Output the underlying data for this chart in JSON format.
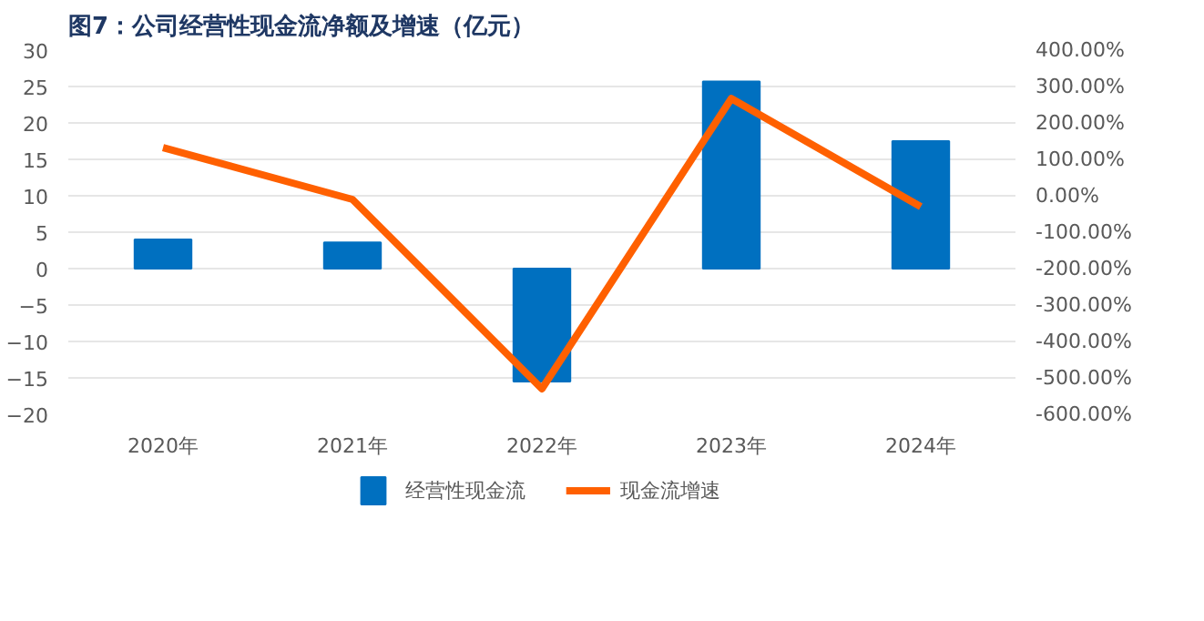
{
  "chart_data": {
    "type": "bar",
    "title": "图7：公司经营性现金流净额及增速（亿元）",
    "categories": [
      "2020年",
      "2021年",
      "2022年",
      "2023年",
      "2024年"
    ],
    "series": [
      {
        "name": "经营性现金流",
        "color": "#0070c0",
        "values": [
          4.0,
          3.6,
          -15.5,
          25.7,
          17.5
        ]
      },
      {
        "name": "现金流增速",
        "color": "#ff6000",
        "type": "line",
        "axis": "y2",
        "values": [
          132,
          -10,
          -530,
          267,
          -30
        ]
      }
    ],
    "ylim": [
      -20,
      30
    ],
    "yticks": [
      -20,
      -15,
      -10,
      -5,
      0,
      5,
      10,
      15,
      20,
      25,
      30
    ],
    "y2lim": [
      -600,
      400
    ],
    "y2ticks": [
      {
        "value": -600,
        "label": "-600.00%"
      },
      {
        "value": -500,
        "label": "-500.00%"
      },
      {
        "value": -400,
        "label": "-400.00%"
      },
      {
        "value": -300,
        "label": "-300.00%"
      },
      {
        "value": -200,
        "label": "-200.00%"
      },
      {
        "value": -100,
        "label": "-100.00%"
      },
      {
        "value": 0,
        "label": "0.00%"
      },
      {
        "value": 100,
        "label": "100.00%"
      },
      {
        "value": 200,
        "label": "200.00%"
      },
      {
        "value": 300,
        "label": "300.00%"
      },
      {
        "value": 400,
        "label": "400.00%"
      }
    ],
    "grid": "y",
    "legend": "bottom",
    "marker": "none",
    "line_style": "solid"
  }
}
